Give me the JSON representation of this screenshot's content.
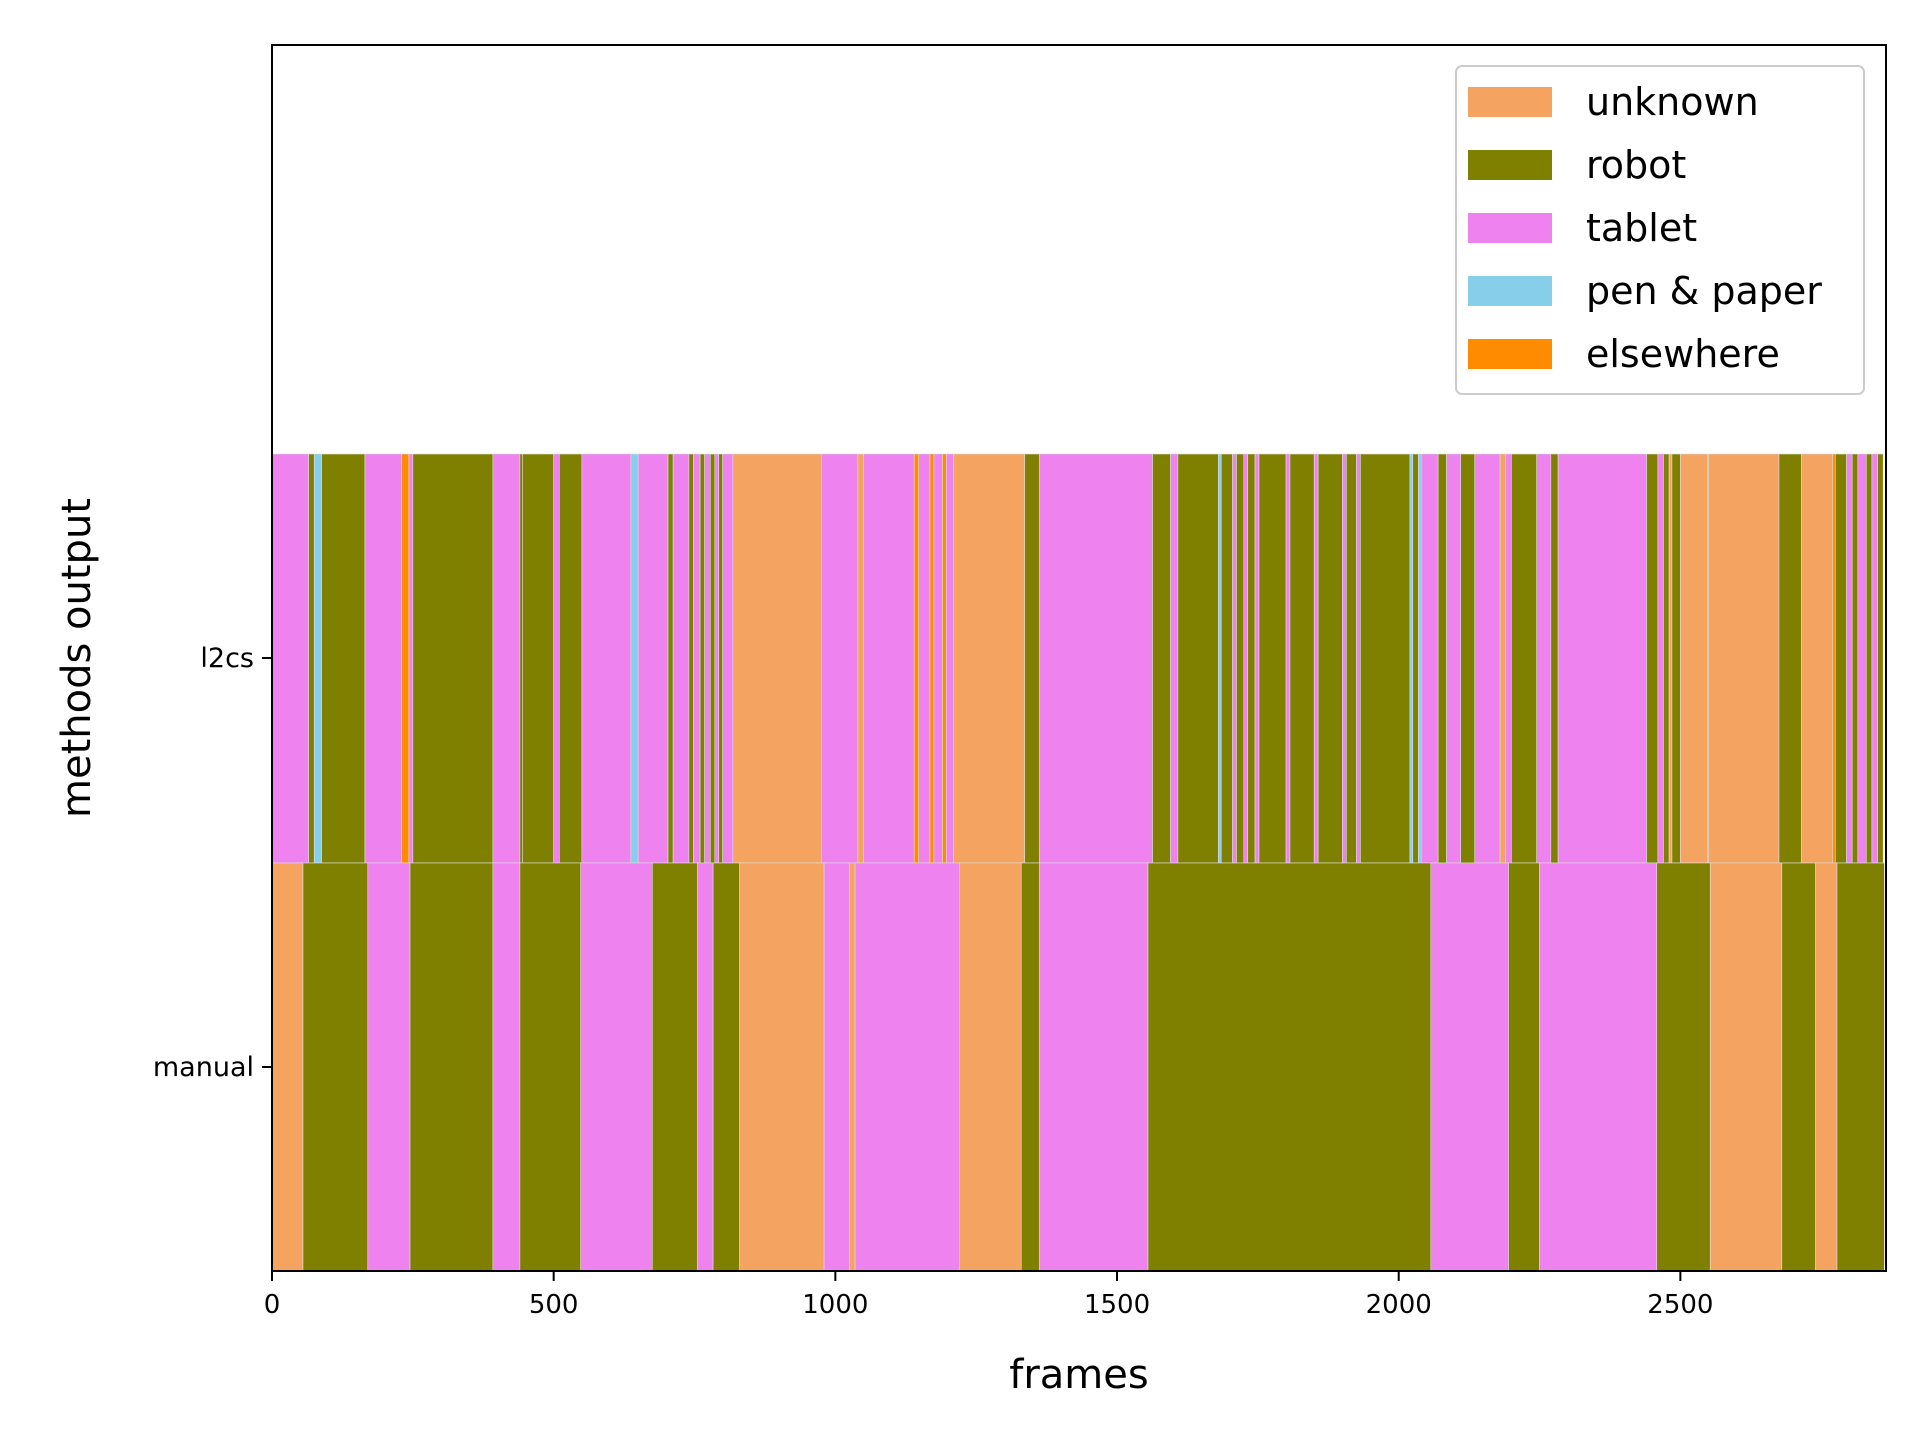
{
  "chart_data": {
    "type": "bar",
    "orientation": "horizontal-broken-barh",
    "xlabel": "frames",
    "ylabel": "methods output",
    "xlim": [
      0,
      2865
    ],
    "xticks": [
      0,
      500,
      1000,
      1500,
      2000,
      2500
    ],
    "tick_labels": [
      "0",
      "500",
      "1000",
      "1500",
      "2000",
      "2500"
    ],
    "categories": [
      "l2cs",
      "manual"
    ],
    "grid": false,
    "legend_position": "top-right",
    "legend": [
      {
        "label": "unknown",
        "color": "#f4a460"
      },
      {
        "label": "robot",
        "color": "#808000"
      },
      {
        "label": "tablet",
        "color": "#ee82ee"
      },
      {
        "label": "pen & paper",
        "color": "#87ceeb"
      },
      {
        "label": "elsewhere",
        "color": "#ff8c00"
      }
    ],
    "series": [
      {
        "category": "l2cs",
        "segments": [
          {
            "start": 0,
            "end": 65,
            "label": "tablet"
          },
          {
            "start": 65,
            "end": 75,
            "label": "robot"
          },
          {
            "start": 75,
            "end": 88,
            "label": "pen & paper"
          },
          {
            "start": 88,
            "end": 165,
            "label": "robot"
          },
          {
            "start": 165,
            "end": 230,
            "label": "tablet"
          },
          {
            "start": 230,
            "end": 243,
            "label": "elsewhere"
          },
          {
            "start": 243,
            "end": 250,
            "label": "tablet"
          },
          {
            "start": 250,
            "end": 392,
            "label": "robot"
          },
          {
            "start": 392,
            "end": 440,
            "label": "tablet"
          },
          {
            "start": 440,
            "end": 445,
            "label": "robot"
          },
          {
            "start": 445,
            "end": 500,
            "label": "robot"
          },
          {
            "start": 500,
            "end": 510,
            "label": "tablet"
          },
          {
            "start": 510,
            "end": 550,
            "label": "robot"
          },
          {
            "start": 550,
            "end": 637,
            "label": "tablet"
          },
          {
            "start": 637,
            "end": 650,
            "label": "pen & paper"
          },
          {
            "start": 650,
            "end": 703,
            "label": "tablet"
          },
          {
            "start": 703,
            "end": 712,
            "label": "robot"
          },
          {
            "start": 712,
            "end": 740,
            "label": "tablet"
          },
          {
            "start": 740,
            "end": 748,
            "label": "robot"
          },
          {
            "start": 748,
            "end": 760,
            "label": "tablet"
          },
          {
            "start": 760,
            "end": 768,
            "label": "robot"
          },
          {
            "start": 768,
            "end": 778,
            "label": "tablet"
          },
          {
            "start": 778,
            "end": 786,
            "label": "robot"
          },
          {
            "start": 786,
            "end": 793,
            "label": "tablet"
          },
          {
            "start": 793,
            "end": 800,
            "label": "robot"
          },
          {
            "start": 800,
            "end": 818,
            "label": "tablet"
          },
          {
            "start": 818,
            "end": 975,
            "label": "unknown"
          },
          {
            "start": 975,
            "end": 1040,
            "label": "tablet"
          },
          {
            "start": 1040,
            "end": 1050,
            "label": "unknown"
          },
          {
            "start": 1050,
            "end": 1140,
            "label": "tablet"
          },
          {
            "start": 1140,
            "end": 1148,
            "label": "elsewhere"
          },
          {
            "start": 1148,
            "end": 1168,
            "label": "tablet"
          },
          {
            "start": 1168,
            "end": 1175,
            "label": "elsewhere"
          },
          {
            "start": 1175,
            "end": 1190,
            "label": "tablet"
          },
          {
            "start": 1190,
            "end": 1197,
            "label": "elsewhere"
          },
          {
            "start": 1197,
            "end": 1210,
            "label": "tablet"
          },
          {
            "start": 1210,
            "end": 1336,
            "label": "unknown"
          },
          {
            "start": 1336,
            "end": 1362,
            "label": "robot"
          },
          {
            "start": 1362,
            "end": 1563,
            "label": "tablet"
          },
          {
            "start": 1563,
            "end": 1595,
            "label": "robot"
          },
          {
            "start": 1595,
            "end": 1608,
            "label": "tablet"
          },
          {
            "start": 1608,
            "end": 1680,
            "label": "robot"
          },
          {
            "start": 1680,
            "end": 1685,
            "label": "pen & paper"
          },
          {
            "start": 1685,
            "end": 1705,
            "label": "robot"
          },
          {
            "start": 1705,
            "end": 1712,
            "label": "tablet"
          },
          {
            "start": 1712,
            "end": 1725,
            "label": "robot"
          },
          {
            "start": 1725,
            "end": 1732,
            "label": "tablet"
          },
          {
            "start": 1732,
            "end": 1745,
            "label": "robot"
          },
          {
            "start": 1745,
            "end": 1752,
            "label": "tablet"
          },
          {
            "start": 1752,
            "end": 1800,
            "label": "robot"
          },
          {
            "start": 1800,
            "end": 1807,
            "label": "tablet"
          },
          {
            "start": 1807,
            "end": 1850,
            "label": "robot"
          },
          {
            "start": 1850,
            "end": 1857,
            "label": "tablet"
          },
          {
            "start": 1857,
            "end": 1900,
            "label": "robot"
          },
          {
            "start": 1900,
            "end": 1907,
            "label": "tablet"
          },
          {
            "start": 1907,
            "end": 1925,
            "label": "robot"
          },
          {
            "start": 1925,
            "end": 1932,
            "label": "tablet"
          },
          {
            "start": 1932,
            "end": 2020,
            "label": "robot"
          },
          {
            "start": 2020,
            "end": 2025,
            "label": "pen & paper"
          },
          {
            "start": 2025,
            "end": 2035,
            "label": "robot"
          },
          {
            "start": 2035,
            "end": 2040,
            "label": "pen & paper"
          },
          {
            "start": 2040,
            "end": 2070,
            "label": "tablet"
          },
          {
            "start": 2070,
            "end": 2085,
            "label": "robot"
          },
          {
            "start": 2085,
            "end": 2110,
            "label": "tablet"
          },
          {
            "start": 2110,
            "end": 2135,
            "label": "robot"
          },
          {
            "start": 2135,
            "end": 2180,
            "label": "tablet"
          },
          {
            "start": 2180,
            "end": 2190,
            "label": "unknown"
          },
          {
            "start": 2190,
            "end": 2200,
            "label": "tablet"
          },
          {
            "start": 2200,
            "end": 2245,
            "label": "robot"
          },
          {
            "start": 2245,
            "end": 2270,
            "label": "tablet"
          },
          {
            "start": 2270,
            "end": 2283,
            "label": "robot"
          },
          {
            "start": 2283,
            "end": 2440,
            "label": "tablet"
          },
          {
            "start": 2440,
            "end": 2460,
            "label": "robot"
          },
          {
            "start": 2460,
            "end": 2470,
            "label": "tablet"
          },
          {
            "start": 2470,
            "end": 2480,
            "label": "robot"
          },
          {
            "start": 2480,
            "end": 2485,
            "label": "unknown"
          },
          {
            "start": 2485,
            "end": 2500,
            "label": "robot"
          },
          {
            "start": 2500,
            "end": 2548,
            "label": "unknown"
          },
          {
            "start": 2548,
            "end": 2550,
            "label": "elsewhere"
          },
          {
            "start": 2550,
            "end": 2675,
            "label": "unknown"
          },
          {
            "start": 2675,
            "end": 2715,
            "label": "robot"
          },
          {
            "start": 2715,
            "end": 2770,
            "label": "unknown"
          },
          {
            "start": 2770,
            "end": 2775,
            "label": "elsewhere"
          },
          {
            "start": 2775,
            "end": 2795,
            "label": "robot"
          },
          {
            "start": 2795,
            "end": 2805,
            "label": "tablet"
          },
          {
            "start": 2805,
            "end": 2815,
            "label": "robot"
          },
          {
            "start": 2815,
            "end": 2830,
            "label": "tablet"
          },
          {
            "start": 2830,
            "end": 2840,
            "label": "robot"
          },
          {
            "start": 2840,
            "end": 2850,
            "label": "tablet"
          },
          {
            "start": 2850,
            "end": 2860,
            "label": "robot"
          }
        ]
      },
      {
        "category": "manual",
        "segments": [
          {
            "start": 0,
            "end": 55,
            "label": "unknown"
          },
          {
            "start": 55,
            "end": 170,
            "label": "robot"
          },
          {
            "start": 170,
            "end": 245,
            "label": "tablet"
          },
          {
            "start": 245,
            "end": 392,
            "label": "robot"
          },
          {
            "start": 392,
            "end": 440,
            "label": "tablet"
          },
          {
            "start": 440,
            "end": 548,
            "label": "robot"
          },
          {
            "start": 548,
            "end": 675,
            "label": "tablet"
          },
          {
            "start": 675,
            "end": 755,
            "label": "robot"
          },
          {
            "start": 755,
            "end": 783,
            "label": "tablet"
          },
          {
            "start": 783,
            "end": 830,
            "label": "robot"
          },
          {
            "start": 830,
            "end": 980,
            "label": "unknown"
          },
          {
            "start": 980,
            "end": 1025,
            "label": "tablet"
          },
          {
            "start": 1025,
            "end": 1035,
            "label": "unknown"
          },
          {
            "start": 1035,
            "end": 1220,
            "label": "tablet"
          },
          {
            "start": 1220,
            "end": 1330,
            "label": "unknown"
          },
          {
            "start": 1330,
            "end": 1362,
            "label": "robot"
          },
          {
            "start": 1362,
            "end": 1555,
            "label": "tablet"
          },
          {
            "start": 1555,
            "end": 2057,
            "label": "robot"
          },
          {
            "start": 2057,
            "end": 2195,
            "label": "tablet"
          },
          {
            "start": 2195,
            "end": 2250,
            "label": "robot"
          },
          {
            "start": 2250,
            "end": 2458,
            "label": "tablet"
          },
          {
            "start": 2458,
            "end": 2553,
            "label": "robot"
          },
          {
            "start": 2553,
            "end": 2680,
            "label": "unknown"
          },
          {
            "start": 2680,
            "end": 2740,
            "label": "robot"
          },
          {
            "start": 2740,
            "end": 2778,
            "label": "unknown"
          },
          {
            "start": 2778,
            "end": 2862,
            "label": "robot"
          }
        ]
      }
    ]
  }
}
